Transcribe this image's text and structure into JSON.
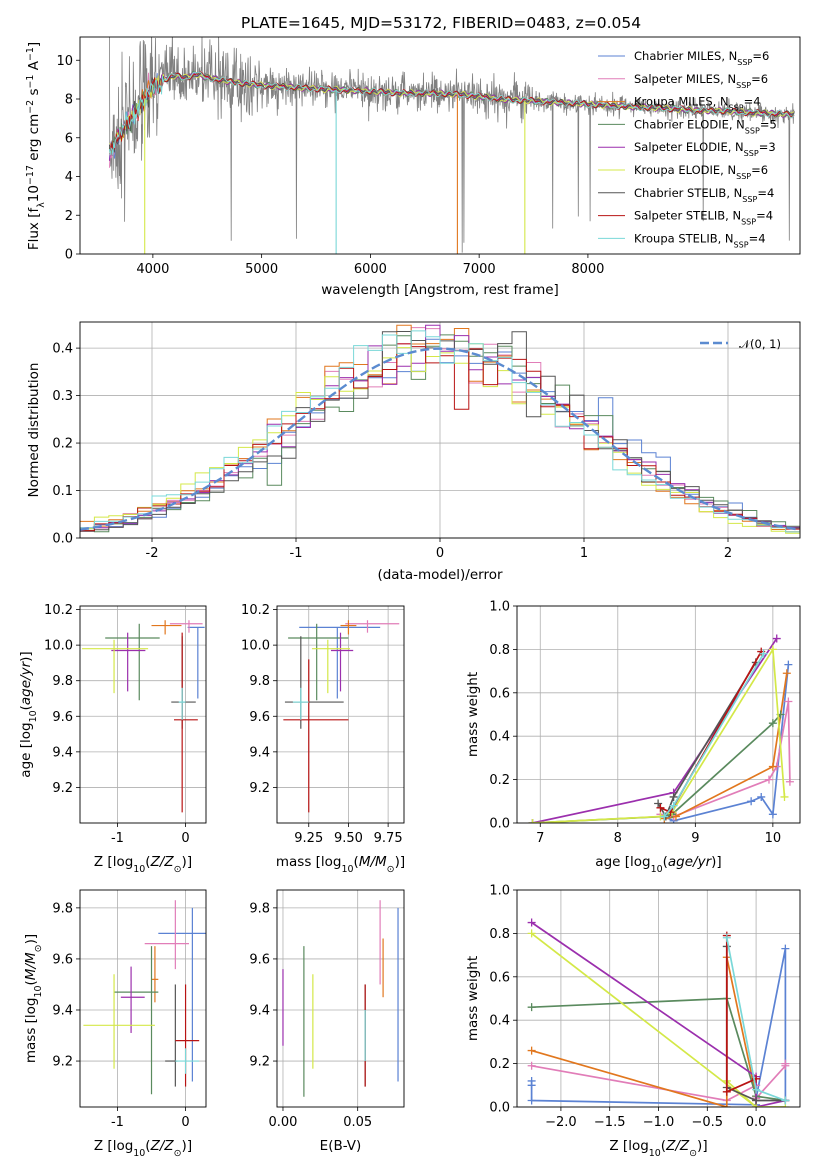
{
  "title": "PLATE=1645, MJD=53172, FIBERID=0483, z=0.054",
  "colors": {
    "chabrier_miles": "#5b82d3",
    "salpeter_miles": "#e17db8",
    "kroupa_miles": "#e1771e",
    "chabrier_elodie": "#5a8a5e",
    "salpeter_elodie": "#9b2fad",
    "kroupa_elodie": "#d4e848",
    "chabrier_stelib": "#555555",
    "salpeter_stelib": "#b81414",
    "kroupa_stelib": "#7ad8d8",
    "data": "#808080",
    "normal": "#5b8bd0"
  },
  "legend": [
    {
      "key": "chabrier_miles",
      "label": "Chabrier MILES, N",
      "sub": "SSP",
      "val": "=6"
    },
    {
      "key": "salpeter_miles",
      "label": "Salpeter MILES, N",
      "sub": "SSP",
      "val": "=6"
    },
    {
      "key": "kroupa_miles",
      "label": "Kroupa MILES, N",
      "sub": "SSP",
      "val": "=4"
    },
    {
      "key": "chabrier_elodie",
      "label": "Chabrier ELODIE, N",
      "sub": "SSP",
      "val": "=5"
    },
    {
      "key": "salpeter_elodie",
      "label": "Salpeter ELODIE, N",
      "sub": "SSP",
      "val": "=3"
    },
    {
      "key": "kroupa_elodie",
      "label": "Kroupa ELODIE, N",
      "sub": "SSP",
      "val": "=6"
    },
    {
      "key": "chabrier_stelib",
      "label": "Chabrier STELIB, N",
      "sub": "SSP",
      "val": "=4"
    },
    {
      "key": "salpeter_stelib",
      "label": "Salpeter STELIB, N",
      "sub": "SSP",
      "val": "=4"
    },
    {
      "key": "kroupa_stelib",
      "label": "Kroupa STELIB, N",
      "sub": "SSP",
      "val": "=4"
    }
  ],
  "chart_data": [
    {
      "id": "spectrum",
      "type": "line",
      "xlabel": "wavelength [Angstrom, rest frame]",
      "ylabel": "Flux [fλ10⁻¹⁷ erg cm⁻² s⁻¹ A⁻¹]",
      "xlim": [
        3330,
        9950
      ],
      "ylim": [
        0,
        11.2
      ],
      "xticks": [
        4000,
        5000,
        6000,
        7000,
        8000
      ],
      "yticks": [
        0,
        2,
        4,
        6,
        8,
        10
      ],
      "model_continuum": {
        "x": [
          3600,
          3700,
          3800,
          3900,
          4000,
          4100,
          4200,
          4300,
          4400,
          4500,
          4700,
          5000,
          5300,
          5600,
          6000,
          6300,
          6600,
          6900,
          7200,
          7500,
          7800,
          8100,
          8400,
          8800,
          9000,
          9200,
          9500,
          9900
        ],
        "y": [
          5.2,
          6.2,
          7.0,
          7.8,
          8.6,
          9.0,
          9.2,
          9.1,
          9.3,
          9.1,
          8.9,
          8.7,
          8.6,
          8.5,
          8.4,
          8.3,
          8.3,
          8.2,
          8.0,
          7.9,
          7.8,
          7.7,
          7.6,
          7.5,
          7.4,
          7.4,
          7.3,
          7.2
        ]
      },
      "model_drops": [
        {
          "x": 3925,
          "y": 0
        },
        {
          "x": 5685,
          "y": 0
        },
        {
          "x": 6800,
          "y": 0
        },
        {
          "x": 7420,
          "y": 0
        }
      ]
    },
    {
      "id": "residuals",
      "type": "step",
      "xlabel": "(data-model)/error",
      "ylabel": "Normed distribution",
      "xlim": [
        -2.5,
        2.5
      ],
      "ylim": [
        0,
        0.455
      ],
      "xticks": [
        -2,
        -1,
        0,
        1,
        2
      ],
      "yticks": [
        0.0,
        0.1,
        0.2,
        0.3,
        0.4
      ],
      "legend": "N(0,1)",
      "bin_width": 0.1
    },
    {
      "id": "age_vs_Z",
      "type": "errorbar",
      "xlabel": "Z [log10(Z/Zsun)]",
      "ylabel": "age  [log10(age/yr)]",
      "xlim": [
        -1.55,
        0.3
      ],
      "ylim": [
        9.0,
        10.22
      ],
      "xticks": [
        -1,
        0
      ],
      "yticks": [
        9.2,
        9.4,
        9.6,
        9.8,
        10.0,
        10.2
      ],
      "points": [
        {
          "key": "chabrier_miles",
          "x": 0.18,
          "y": 10.1,
          "xerr": [
            0.15,
            0.1
          ],
          "yerr": [
            0.4,
            0.0
          ]
        },
        {
          "key": "salpeter_miles",
          "x": 0.05,
          "y": 10.12,
          "xerr": [
            0.28,
            0.2
          ],
          "yerr": [
            0.05,
            0.02
          ]
        },
        {
          "key": "kroupa_miles",
          "x": -0.3,
          "y": 10.11,
          "xerr": [
            0.2,
            0.24
          ],
          "yerr": [
            0.05,
            0.03
          ]
        },
        {
          "key": "chabrier_elodie",
          "x": -0.68,
          "y": 10.04,
          "xerr": [
            0.5,
            0.3
          ],
          "yerr": [
            0.35,
            0.08
          ]
        },
        {
          "key": "salpeter_elodie",
          "x": -0.85,
          "y": 9.97,
          "xerr": [
            0.24,
            0.26
          ],
          "yerr": [
            0.23,
            0.1
          ]
        },
        {
          "key": "kroupa_elodie",
          "x": -1.05,
          "y": 9.98,
          "xerr": [
            0.47,
            0.5
          ],
          "yerr": [
            0.25,
            0.05
          ]
        },
        {
          "key": "chabrier_stelib",
          "x": -0.05,
          "y": 9.68,
          "xerr": [
            0.16,
            0.2
          ],
          "yerr": [
            0.15,
            0.37
          ]
        },
        {
          "key": "salpeter_stelib",
          "x": -0.05,
          "y": 9.58,
          "xerr": [
            0.12,
            0.23
          ],
          "yerr": [
            0.52,
            0.49
          ]
        },
        {
          "key": "kroupa_stelib",
          "x": -0.05,
          "y": 9.68,
          "xerr": [
            0.05,
            0.05
          ],
          "yerr": [
            0.1,
            0.08
          ]
        }
      ]
    },
    {
      "id": "age_vs_mass",
      "type": "errorbar",
      "xlabel": "mass [log10(M/Msun)]",
      "ylabel": "",
      "xlim": [
        9.05,
        9.85
      ],
      "ylim": [
        9.0,
        10.22
      ],
      "xticks": [
        9.25,
        9.5,
        9.75
      ],
      "yticks": [
        9.2,
        9.4,
        9.6,
        9.8,
        10.0,
        10.2
      ],
      "points": [
        {
          "key": "chabrier_miles",
          "x": 9.43,
          "y": 10.1,
          "xerr": [
            0.24,
            0.27
          ],
          "yerr": [
            0.4,
            0.0
          ]
        },
        {
          "key": "salpeter_miles",
          "x": 9.62,
          "y": 10.12,
          "xerr": [
            0.14,
            0.2
          ],
          "yerr": [
            0.05,
            0.02
          ]
        },
        {
          "key": "kroupa_miles",
          "x": 9.5,
          "y": 10.11,
          "xerr": [
            0.05,
            0.05
          ],
          "yerr": [
            0.05,
            0.03
          ]
        },
        {
          "key": "chabrier_elodie",
          "x": 9.3,
          "y": 10.04,
          "xerr": [
            0.18,
            0.2
          ],
          "yerr": [
            0.35,
            0.08
          ]
        },
        {
          "key": "salpeter_elodie",
          "x": 9.45,
          "y": 9.97,
          "xerr": [
            0.06,
            0.08
          ],
          "yerr": [
            0.23,
            0.1
          ]
        },
        {
          "key": "kroupa_elodie",
          "x": 9.37,
          "y": 9.98,
          "xerr": [
            0.1,
            0.14
          ],
          "yerr": [
            0.25,
            0.05
          ]
        },
        {
          "key": "chabrier_stelib",
          "x": 9.2,
          "y": 9.68,
          "xerr": [
            0.1,
            0.27
          ],
          "yerr": [
            0.15,
            0.37
          ]
        },
        {
          "key": "salpeter_stelib",
          "x": 9.25,
          "y": 9.58,
          "xerr": [
            0.16,
            0.25
          ],
          "yerr": [
            0.52,
            0.34
          ]
        },
        {
          "key": "kroupa_stelib",
          "x": 9.2,
          "y": 9.68,
          "xerr": [
            0.05,
            0.05
          ],
          "yerr": [
            0.1,
            0.08
          ]
        }
      ]
    },
    {
      "id": "weight_vs_age",
      "type": "line",
      "xlabel": "age  [log10(age/yr)]",
      "ylabel": "mass weight",
      "xlim": [
        6.7,
        10.35
      ],
      "ylim": [
        0,
        1
      ],
      "xticks": [
        7,
        8,
        9,
        10
      ],
      "yticks": [
        0.0,
        0.2,
        0.4,
        0.6,
        0.8,
        1.0
      ],
      "series": [
        {
          "key": "chabrier_miles",
          "x": [
            8.6,
            8.72,
            9.72,
            9.85,
            10.0,
            10.2
          ],
          "y": [
            0.03,
            0.01,
            0.1,
            0.12,
            0.04,
            0.73
          ]
        },
        {
          "key": "salpeter_miles",
          "x": [
            8.55,
            8.72,
            9.95,
            10.05,
            10.2,
            10.22
          ],
          "y": [
            0.04,
            0.03,
            0.2,
            0.26,
            0.56,
            0.19
          ]
        },
        {
          "key": "kroupa_miles",
          "x": [
            8.6,
            8.75,
            10.0,
            10.18
          ],
          "y": [
            0.02,
            0.03,
            0.26,
            0.69
          ]
        },
        {
          "key": "chabrier_elodie",
          "x": [
            6.9,
            8.6,
            8.7,
            10.0,
            10.1
          ],
          "y": [
            0.0,
            0.03,
            0.04,
            0.46,
            0.5
          ]
        },
        {
          "key": "salpeter_elodie",
          "x": [
            6.9,
            8.72,
            10.05
          ],
          "y": [
            0.0,
            0.14,
            0.85
          ]
        },
        {
          "key": "kroupa_elodie",
          "x": [
            6.9,
            8.55,
            8.7,
            10.0,
            10.15
          ],
          "y": [
            0.0,
            0.03,
            0.05,
            0.8,
            0.12
          ]
        },
        {
          "key": "chabrier_stelib",
          "x": [
            8.52,
            8.62,
            8.72,
            9.78
          ],
          "y": [
            0.09,
            0.03,
            0.12,
            0.74
          ]
        },
        {
          "key": "salpeter_stelib",
          "x": [
            8.55,
            8.68,
            9.85
          ],
          "y": [
            0.07,
            0.05,
            0.79
          ]
        },
        {
          "key": "kroupa_stelib",
          "x": [
            8.6,
            8.72,
            9.88
          ],
          "y": [
            0.03,
            0.08,
            0.78
          ]
        }
      ]
    },
    {
      "id": "mass_vs_Z",
      "type": "errorbar",
      "xlabel": "Z [log10(Z/Zsun)]",
      "ylabel": "mass [log10(M/Msun)]",
      "xlim": [
        -1.55,
        0.3
      ],
      "ylim": [
        9.02,
        9.87
      ],
      "xticks": [
        -1,
        0
      ],
      "yticks": [
        9.2,
        9.4,
        9.6,
        9.8
      ],
      "points": [
        {
          "key": "chabrier_miles",
          "x": 0.1,
          "y": 9.7,
          "xerr": [
            0.5,
            0.2
          ],
          "yerr": [
            0.58,
            0.1
          ]
        },
        {
          "key": "salpeter_miles",
          "x": -0.15,
          "y": 9.66,
          "xerr": [
            0.45,
            0.2
          ],
          "yerr": [
            0.1,
            0.17
          ]
        },
        {
          "key": "kroupa_miles",
          "x": -0.45,
          "y": 9.52,
          "xerr": [
            0.05,
            0.05
          ],
          "yerr": [
            0.09,
            0.13
          ]
        },
        {
          "key": "chabrier_elodie",
          "x": -0.5,
          "y": 9.47,
          "xerr": [
            0.55,
            0.1
          ],
          "yerr": [
            0.4,
            0.18
          ]
        },
        {
          "key": "salpeter_elodie",
          "x": -0.8,
          "y": 9.45,
          "xerr": [
            0.15,
            0.2
          ],
          "yerr": [
            0.14,
            0.12
          ]
        },
        {
          "key": "kroupa_elodie",
          "x": -1.05,
          "y": 9.34,
          "xerr": [
            0.45,
            0.6
          ],
          "yerr": [
            0.17,
            0.2
          ]
        },
        {
          "key": "chabrier_stelib",
          "x": -0.15,
          "y": 9.2,
          "xerr": [
            0.15,
            0.03
          ],
          "yerr": [
            0.1,
            0.3
          ]
        },
        {
          "key": "salpeter_stelib",
          "x": 0.0,
          "y": 9.28,
          "xerr": [
            0.15,
            0.2
          ],
          "yerr": [
            0.18,
            0.22
          ]
        },
        {
          "key": "kroupa_stelib",
          "x": 0.0,
          "y": 9.2,
          "xerr": [
            0.15,
            0.2
          ],
          "yerr": [
            0.05,
            0.05
          ]
        }
      ]
    },
    {
      "id": "mass_vs_ebv",
      "type": "errorbar",
      "xlabel": "E(B-V)",
      "ylabel": "",
      "xlim": [
        -0.004,
        0.081
      ],
      "ylim": [
        9.02,
        9.87
      ],
      "xticks": [
        0.0,
        0.05
      ],
      "yticks": [
        9.2,
        9.4,
        9.6,
        9.8
      ],
      "points": [
        {
          "key": "chabrier_miles",
          "x": 0.077,
          "y": 9.46,
          "xerr": [
            0,
            0
          ],
          "yerr": [
            0.34,
            0.34
          ]
        },
        {
          "key": "salpeter_miles",
          "x": 0.065,
          "y": 9.65,
          "xerr": [
            0,
            0
          ],
          "yerr": [
            0.15,
            0.18
          ]
        },
        {
          "key": "kroupa_miles",
          "x": 0.067,
          "y": 9.5,
          "xerr": [
            0,
            0
          ],
          "yerr": [
            0.05,
            0.18
          ]
        },
        {
          "key": "chabrier_elodie",
          "x": 0.014,
          "y": 9.35,
          "xerr": [
            0,
            0
          ],
          "yerr": [
            0.29,
            0.3
          ]
        },
        {
          "key": "salpeter_elodie",
          "x": 0.0,
          "y": 9.41,
          "xerr": [
            0,
            0
          ],
          "yerr": [
            0.15,
            0.15
          ]
        },
        {
          "key": "kroupa_elodie",
          "x": 0.02,
          "y": 9.35,
          "xerr": [
            0,
            0
          ],
          "yerr": [
            0.18,
            0.19
          ]
        },
        {
          "key": "chabrier_stelib",
          "x": 0.055,
          "y": 9.3,
          "xerr": [
            0,
            0
          ],
          "yerr": [
            0.2,
            0.2
          ]
        },
        {
          "key": "salpeter_stelib",
          "x": 0.055,
          "y": 9.28,
          "xerr": [
            0,
            0
          ],
          "yerr": [
            0.18,
            0.22
          ]
        },
        {
          "key": "kroupa_stelib",
          "x": 0.055,
          "y": 9.3,
          "xerr": [
            0,
            0
          ],
          "yerr": [
            0.1,
            0.1
          ]
        }
      ]
    },
    {
      "id": "weight_vs_Z",
      "type": "line",
      "xlabel": "Z [log10(Z/Zsun)]",
      "ylabel": "mass weight",
      "xlim": [
        -2.45,
        0.45
      ],
      "ylim": [
        0,
        1
      ],
      "xticks": [
        -2.0,
        -1.5,
        -1.0,
        -0.5,
        0.0
      ],
      "yticks": [
        0.0,
        0.2,
        0.4,
        0.6,
        0.8,
        1.0
      ],
      "series": [
        {
          "key": "chabrier_miles",
          "x": [
            -2.3,
            -2.3,
            -2.3,
            0.0,
            0.0,
            0.0,
            0.3,
            0.3
          ],
          "y": [
            0.12,
            0.1,
            0.03,
            0.01,
            0.1,
            0.04,
            0.73,
            0.03
          ]
        },
        {
          "key": "salpeter_miles",
          "x": [
            -2.3,
            -0.3,
            0.0,
            0.0,
            0.3,
            0.3
          ],
          "y": [
            0.19,
            0.03,
            0.1,
            0.04,
            0.19,
            0.2
          ]
        },
        {
          "key": "kroupa_miles",
          "x": [
            -2.3,
            -0.3,
            -0.3,
            0.0,
            0.0
          ],
          "y": [
            0.26,
            0.0,
            0.69,
            0.05,
            0.03
          ]
        },
        {
          "key": "chabrier_elodie",
          "x": [
            -2.3,
            -0.3,
            0.0,
            0.3
          ],
          "y": [
            0.46,
            0.5,
            0.05,
            0.03
          ]
        },
        {
          "key": "salpeter_elodie",
          "x": [
            -2.3,
            0.0,
            0.0,
            0.3
          ],
          "y": [
            0.85,
            0.14,
            0.0,
            0.03
          ]
        },
        {
          "key": "kroupa_elodie",
          "x": [
            -2.3,
            0.0,
            -0.3,
            0.0,
            0.3
          ],
          "y": [
            0.8,
            0.0,
            0.12,
            0.0,
            0.0
          ]
        },
        {
          "key": "chabrier_stelib",
          "x": [
            -0.3,
            -0.3,
            0.0,
            0.3
          ],
          "y": [
            0.74,
            0.09,
            0.03,
            0.03
          ]
        },
        {
          "key": "salpeter_stelib",
          "x": [
            -0.3,
            -0.3,
            0.0
          ],
          "y": [
            0.79,
            0.07,
            0.13
          ]
        },
        {
          "key": "kroupa_stelib",
          "x": [
            -0.3,
            0.0,
            0.3
          ],
          "y": [
            0.78,
            0.08,
            0.03
          ]
        }
      ]
    }
  ]
}
